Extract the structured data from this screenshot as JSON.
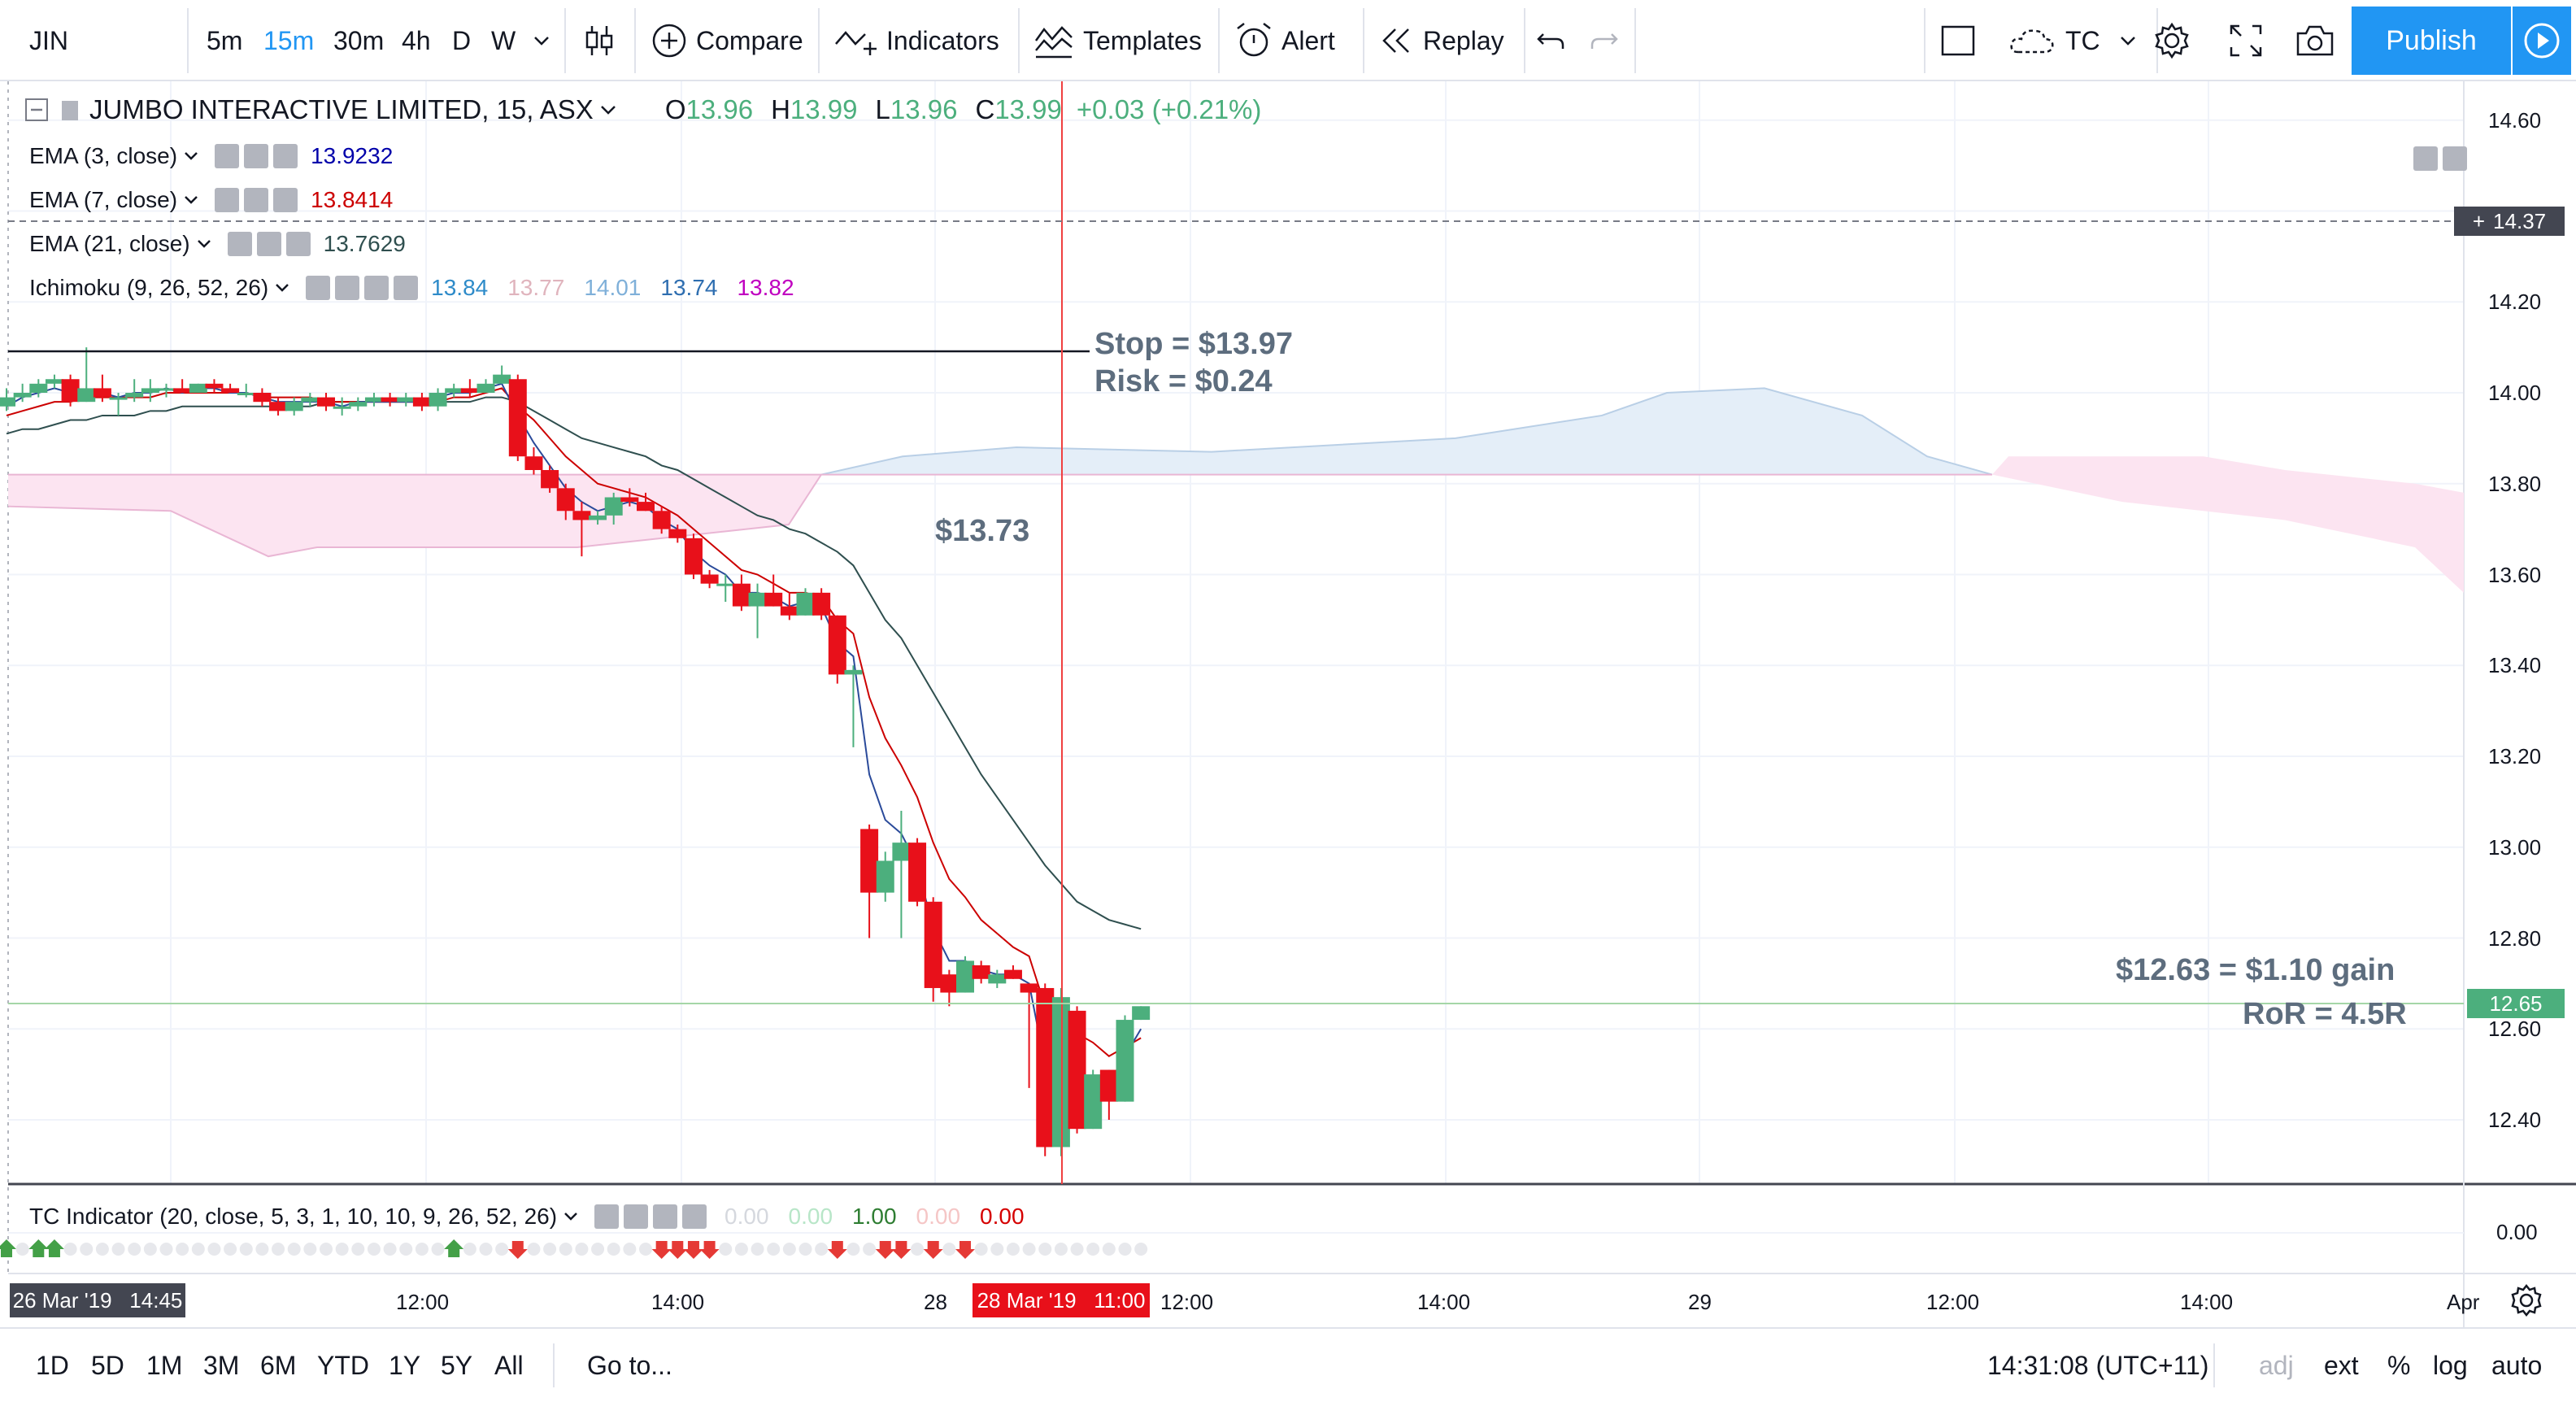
{
  "toolbar": {
    "symbol": "JIN",
    "intervals": [
      "5m",
      "15m",
      "30m",
      "4h",
      "D",
      "W"
    ],
    "active_interval": "15m",
    "compare": "Compare",
    "indicators": "Indicators",
    "templates": "Templates",
    "alert": "Alert",
    "replay": "Replay",
    "layout": "TC",
    "publish": "Publish"
  },
  "legend": {
    "title": "JUMBO INTERACTIVE LIMITED, 15, ASX",
    "ohlc": [
      {
        "k": "O",
        "v": "13.96"
      },
      {
        "k": "H",
        "v": "13.99"
      },
      {
        "k": "L",
        "v": "13.96"
      },
      {
        "k": "C",
        "v": "13.99"
      }
    ],
    "change": "+0.03 (+0.21%)",
    "ema3": {
      "label": "EMA (3, close)",
      "value": "13.9232",
      "color": "#0000aa"
    },
    "ema7": {
      "label": "EMA (7, close)",
      "value": "13.8414",
      "color": "#cc0000"
    },
    "ema21": {
      "label": "EMA (21, close)",
      "value": "13.7629",
      "color": "#2f4f4f"
    },
    "ichimoku": {
      "label": "Ichimoku (9, 26, 52, 26)",
      "values": [
        {
          "v": "13.84",
          "color": "#2e8bc9"
        },
        {
          "v": "13.77",
          "color": "#e0b4bd"
        },
        {
          "v": "14.01",
          "color": "#7fb0d9"
        },
        {
          "v": "13.74",
          "color": "#2e6eb0"
        },
        {
          "v": "13.82",
          "color": "#c000c0"
        }
      ]
    },
    "tc": {
      "label": "TC Indicator (20, close, 5, 3, 1, 10, 10, 9, 26, 52, 26)",
      "values": [
        {
          "v": "0.00",
          "color": "#d5d8de"
        },
        {
          "v": "0.00",
          "color": "#b8e6c8"
        },
        {
          "v": "1.00",
          "color": "#2e7d32"
        },
        {
          "v": "0.00",
          "color": "#f5c6c6"
        },
        {
          "v": "0.00",
          "color": "#d50000"
        }
      ]
    }
  },
  "annotations": {
    "stop": "Stop = $13.97",
    "risk": "Risk = $0.24",
    "entry": "$13.73",
    "exit": "$12.63 = $1.10 gain",
    "ror": "RoR = 4.5R"
  },
  "price_axis": {
    "ticks": [
      "14.60",
      "14.20",
      "14.00",
      "13.80",
      "13.60",
      "13.40",
      "13.20",
      "13.00",
      "12.80",
      "12.60",
      "12.40"
    ],
    "crosshair_price": "14.37",
    "last_price": "12.65",
    "indicator_tick": "0.00"
  },
  "time_axis": {
    "labels": [
      "12:00",
      "14:00",
      "28",
      "12:00",
      "14:00",
      "29",
      "12:00",
      "14:00",
      "Apr"
    ],
    "start_tag": "26 Mar '19   14:45",
    "cursor_tag": "28 Mar '19   11:00"
  },
  "bottombar": {
    "ranges": [
      "1D",
      "5D",
      "1M",
      "3M",
      "6M",
      "YTD",
      "1Y",
      "5Y",
      "All"
    ],
    "goto": "Go to...",
    "clock": "14:31:08 (UTC+11)",
    "options": [
      "adj",
      "ext",
      "%",
      "log",
      "auto"
    ]
  },
  "colors": {
    "up": "#4caf7d",
    "down": "#e8101a",
    "accent": "#2196f3",
    "cloud_bull": "#e4eef8",
    "cloud_bear": "#fce4f1"
  },
  "chart_data": {
    "type": "candlestick",
    "symbol": "JIN",
    "interval": "15",
    "ylim": [
      12.26,
      14.66
    ],
    "candles": [
      {
        "o": 13.97,
        "h": 14.01,
        "l": 13.96,
        "c": 13.99
      },
      {
        "o": 13.99,
        "h": 14.02,
        "l": 13.98,
        "c": 14.0
      },
      {
        "o": 14.0,
        "h": 14.03,
        "l": 13.99,
        "c": 14.02
      },
      {
        "o": 14.02,
        "h": 14.04,
        "l": 14.01,
        "c": 14.03
      },
      {
        "o": 14.03,
        "h": 14.04,
        "l": 13.97,
        "c": 13.98
      },
      {
        "o": 13.98,
        "h": 14.1,
        "l": 13.98,
        "c": 14.01
      },
      {
        "o": 14.01,
        "h": 14.04,
        "l": 13.98,
        "c": 13.99
      },
      {
        "o": 13.99,
        "h": 14.0,
        "l": 13.95,
        "c": 13.99
      },
      {
        "o": 13.99,
        "h": 14.03,
        "l": 13.98,
        "c": 14.0
      },
      {
        "o": 14.0,
        "h": 14.03,
        "l": 13.98,
        "c": 14.01
      },
      {
        "o": 14.01,
        "h": 14.02,
        "l": 13.99,
        "c": 14.01
      },
      {
        "o": 14.01,
        "h": 14.03,
        "l": 14.0,
        "c": 14.0
      },
      {
        "o": 14.0,
        "h": 14.02,
        "l": 14.0,
        "c": 14.02
      },
      {
        "o": 14.02,
        "h": 14.03,
        "l": 14.0,
        "c": 14.01
      },
      {
        "o": 14.01,
        "h": 14.02,
        "l": 14.0,
        "c": 14.0
      },
      {
        "o": 14.0,
        "h": 14.02,
        "l": 13.99,
        "c": 14.0
      },
      {
        "o": 14.0,
        "h": 14.01,
        "l": 13.97,
        "c": 13.98
      },
      {
        "o": 13.98,
        "h": 13.99,
        "l": 13.95,
        "c": 13.96
      },
      {
        "o": 13.96,
        "h": 13.99,
        "l": 13.95,
        "c": 13.98
      },
      {
        "o": 13.98,
        "h": 14.0,
        "l": 13.97,
        "c": 13.99
      },
      {
        "o": 13.99,
        "h": 14.0,
        "l": 13.96,
        "c": 13.97
      },
      {
        "o": 13.97,
        "h": 13.99,
        "l": 13.95,
        "c": 13.97
      },
      {
        "o": 13.97,
        "h": 13.99,
        "l": 13.96,
        "c": 13.98
      },
      {
        "o": 13.98,
        "h": 14.0,
        "l": 13.97,
        "c": 13.99
      },
      {
        "o": 13.99,
        "h": 14.0,
        "l": 13.97,
        "c": 13.98
      },
      {
        "o": 13.98,
        "h": 14.0,
        "l": 13.97,
        "c": 13.99
      },
      {
        "o": 13.99,
        "h": 14.0,
        "l": 13.96,
        "c": 13.97
      },
      {
        "o": 13.97,
        "h": 14.01,
        "l": 13.96,
        "c": 14.0
      },
      {
        "o": 14.0,
        "h": 14.02,
        "l": 13.99,
        "c": 14.01
      },
      {
        "o": 14.01,
        "h": 14.03,
        "l": 13.99,
        "c": 14.0
      },
      {
        "o": 14.0,
        "h": 14.03,
        "l": 14.0,
        "c": 14.02
      },
      {
        "o": 14.02,
        "h": 14.06,
        "l": 14.02,
        "c": 14.04
      },
      {
        "o": 14.03,
        "h": 14.04,
        "l": 13.85,
        "c": 13.86
      },
      {
        "o": 13.86,
        "h": 13.88,
        "l": 13.82,
        "c": 13.83
      },
      {
        "o": 13.83,
        "h": 13.84,
        "l": 13.78,
        "c": 13.79
      },
      {
        "o": 13.79,
        "h": 13.8,
        "l": 13.72,
        "c": 13.74
      },
      {
        "o": 13.74,
        "h": 13.76,
        "l": 13.64,
        "c": 13.72
      },
      {
        "o": 13.72,
        "h": 13.74,
        "l": 13.71,
        "c": 13.73
      },
      {
        "o": 13.73,
        "h": 13.78,
        "l": 13.71,
        "c": 13.77
      },
      {
        "o": 13.77,
        "h": 13.79,
        "l": 13.75,
        "c": 13.76
      },
      {
        "o": 13.76,
        "h": 13.78,
        "l": 13.74,
        "c": 13.74
      },
      {
        "o": 13.74,
        "h": 13.75,
        "l": 13.69,
        "c": 13.7
      },
      {
        "o": 13.7,
        "h": 13.71,
        "l": 13.67,
        "c": 13.68
      },
      {
        "o": 13.68,
        "h": 13.69,
        "l": 13.59,
        "c": 13.6
      },
      {
        "o": 13.6,
        "h": 13.61,
        "l": 13.57,
        "c": 13.58
      },
      {
        "o": 13.58,
        "h": 13.6,
        "l": 13.54,
        "c": 13.58
      },
      {
        "o": 13.58,
        "h": 13.6,
        "l": 13.52,
        "c": 13.53
      },
      {
        "o": 13.53,
        "h": 13.58,
        "l": 13.46,
        "c": 13.56
      },
      {
        "o": 13.56,
        "h": 13.6,
        "l": 13.53,
        "c": 13.53
      },
      {
        "o": 13.53,
        "h": 13.56,
        "l": 13.5,
        "c": 13.51
      },
      {
        "o": 13.51,
        "h": 13.57,
        "l": 13.51,
        "c": 13.56
      },
      {
        "o": 13.56,
        "h": 13.57,
        "l": 13.5,
        "c": 13.51
      },
      {
        "o": 13.51,
        "h": 13.51,
        "l": 13.36,
        "c": 13.38
      },
      {
        "o": 13.38,
        "h": 13.4,
        "l": 13.22,
        "c": 13.39
      },
      {
        "o": 13.04,
        "h": 13.05,
        "l": 12.8,
        "c": 12.9
      },
      {
        "o": 12.9,
        "h": 12.99,
        "l": 12.88,
        "c": 12.97
      },
      {
        "o": 12.97,
        "h": 13.08,
        "l": 12.8,
        "c": 13.01
      },
      {
        "o": 13.01,
        "h": 13.02,
        "l": 12.87,
        "c": 12.88
      },
      {
        "o": 12.88,
        "h": 12.89,
        "l": 12.66,
        "c": 12.69
      },
      {
        "o": 12.72,
        "h": 12.73,
        "l": 12.65,
        "c": 12.68
      },
      {
        "o": 12.68,
        "h": 12.76,
        "l": 12.68,
        "c": 12.75
      },
      {
        "o": 12.74,
        "h": 12.75,
        "l": 12.7,
        "c": 12.71
      },
      {
        "o": 12.7,
        "h": 12.73,
        "l": 12.69,
        "c": 12.72
      },
      {
        "o": 12.73,
        "h": 12.74,
        "l": 12.71,
        "c": 12.71
      },
      {
        "o": 12.7,
        "h": 12.7,
        "l": 12.47,
        "c": 12.68
      },
      {
        "o": 12.69,
        "h": 12.7,
        "l": 12.32,
        "c": 12.34
      },
      {
        "o": 12.34,
        "h": 12.69,
        "l": 12.32,
        "c": 12.67
      },
      {
        "o": 12.64,
        "h": 12.65,
        "l": 12.37,
        "c": 12.38
      },
      {
        "o": 12.38,
        "h": 12.51,
        "l": 12.38,
        "c": 12.5
      },
      {
        "o": 12.51,
        "h": 12.51,
        "l": 12.4,
        "c": 12.44
      },
      {
        "o": 12.44,
        "h": 12.63,
        "l": 12.44,
        "c": 12.62
      },
      {
        "o": 12.62,
        "h": 12.65,
        "l": 12.62,
        "c": 12.65
      }
    ],
    "ema3": [
      13.97,
      13.99,
      14.0,
      14.01,
      14.0,
      14.0,
      14.0,
      13.99,
      14.0,
      14.0,
      14.01,
      14.0,
      14.01,
      14.01,
      14.0,
      14.0,
      13.99,
      13.98,
      13.98,
      13.98,
      13.98,
      13.97,
      13.98,
      13.98,
      13.98,
      13.98,
      13.98,
      13.99,
      14.0,
      14.0,
      14.01,
      14.02,
      13.95,
      13.89,
      13.84,
      13.79,
      13.76,
      13.74,
      13.75,
      13.76,
      13.75,
      13.72,
      13.7,
      13.65,
      13.62,
      13.6,
      13.56,
      13.56,
      13.55,
      13.53,
      13.54,
      13.53,
      13.45,
      13.42,
      13.16,
      13.06,
      13.03,
      12.96,
      12.82,
      12.75,
      12.75,
      12.73,
      12.72,
      12.72,
      12.7,
      12.52,
      12.59,
      12.49,
      12.49,
      12.47,
      12.54,
      12.6
    ],
    "ema7": [
      13.95,
      13.96,
      13.97,
      13.98,
      13.98,
      13.99,
      13.99,
      13.99,
      13.99,
      13.99,
      14.0,
      14.0,
      14.0,
      14.0,
      14.0,
      14.0,
      13.99,
      13.99,
      13.99,
      13.99,
      13.98,
      13.98,
      13.98,
      13.98,
      13.98,
      13.98,
      13.98,
      13.98,
      13.99,
      13.99,
      14.0,
      14.01,
      13.97,
      13.94,
      13.9,
      13.86,
      13.83,
      13.8,
      13.79,
      13.78,
      13.77,
      13.75,
      13.73,
      13.7,
      13.67,
      13.64,
      13.61,
      13.6,
      13.58,
      13.56,
      13.56,
      13.55,
      13.5,
      13.47,
      13.33,
      13.24,
      13.18,
      13.11,
      13.01,
      12.93,
      12.89,
      12.84,
      12.81,
      12.78,
      12.76,
      12.65,
      12.66,
      12.59,
      12.57,
      12.54,
      12.56,
      12.58
    ],
    "ema21": [
      13.91,
      13.92,
      13.92,
      13.93,
      13.94,
      13.94,
      13.95,
      13.95,
      13.95,
      13.96,
      13.96,
      13.97,
      13.97,
      13.97,
      13.97,
      13.97,
      13.97,
      13.97,
      13.97,
      13.97,
      13.98,
      13.98,
      13.98,
      13.98,
      13.98,
      13.98,
      13.98,
      13.98,
      13.98,
      13.98,
      13.99,
      13.99,
      13.98,
      13.96,
      13.94,
      13.92,
      13.9,
      13.89,
      13.88,
      13.87,
      13.86,
      13.84,
      13.83,
      13.81,
      13.79,
      13.77,
      13.75,
      13.73,
      13.72,
      13.7,
      13.69,
      13.67,
      13.65,
      13.62,
      13.56,
      13.5,
      13.46,
      13.4,
      13.34,
      13.28,
      13.22,
      13.16,
      13.11,
      13.06,
      13.01,
      12.96,
      12.92,
      12.88,
      12.86,
      12.84,
      12.83,
      12.82
    ]
  }
}
